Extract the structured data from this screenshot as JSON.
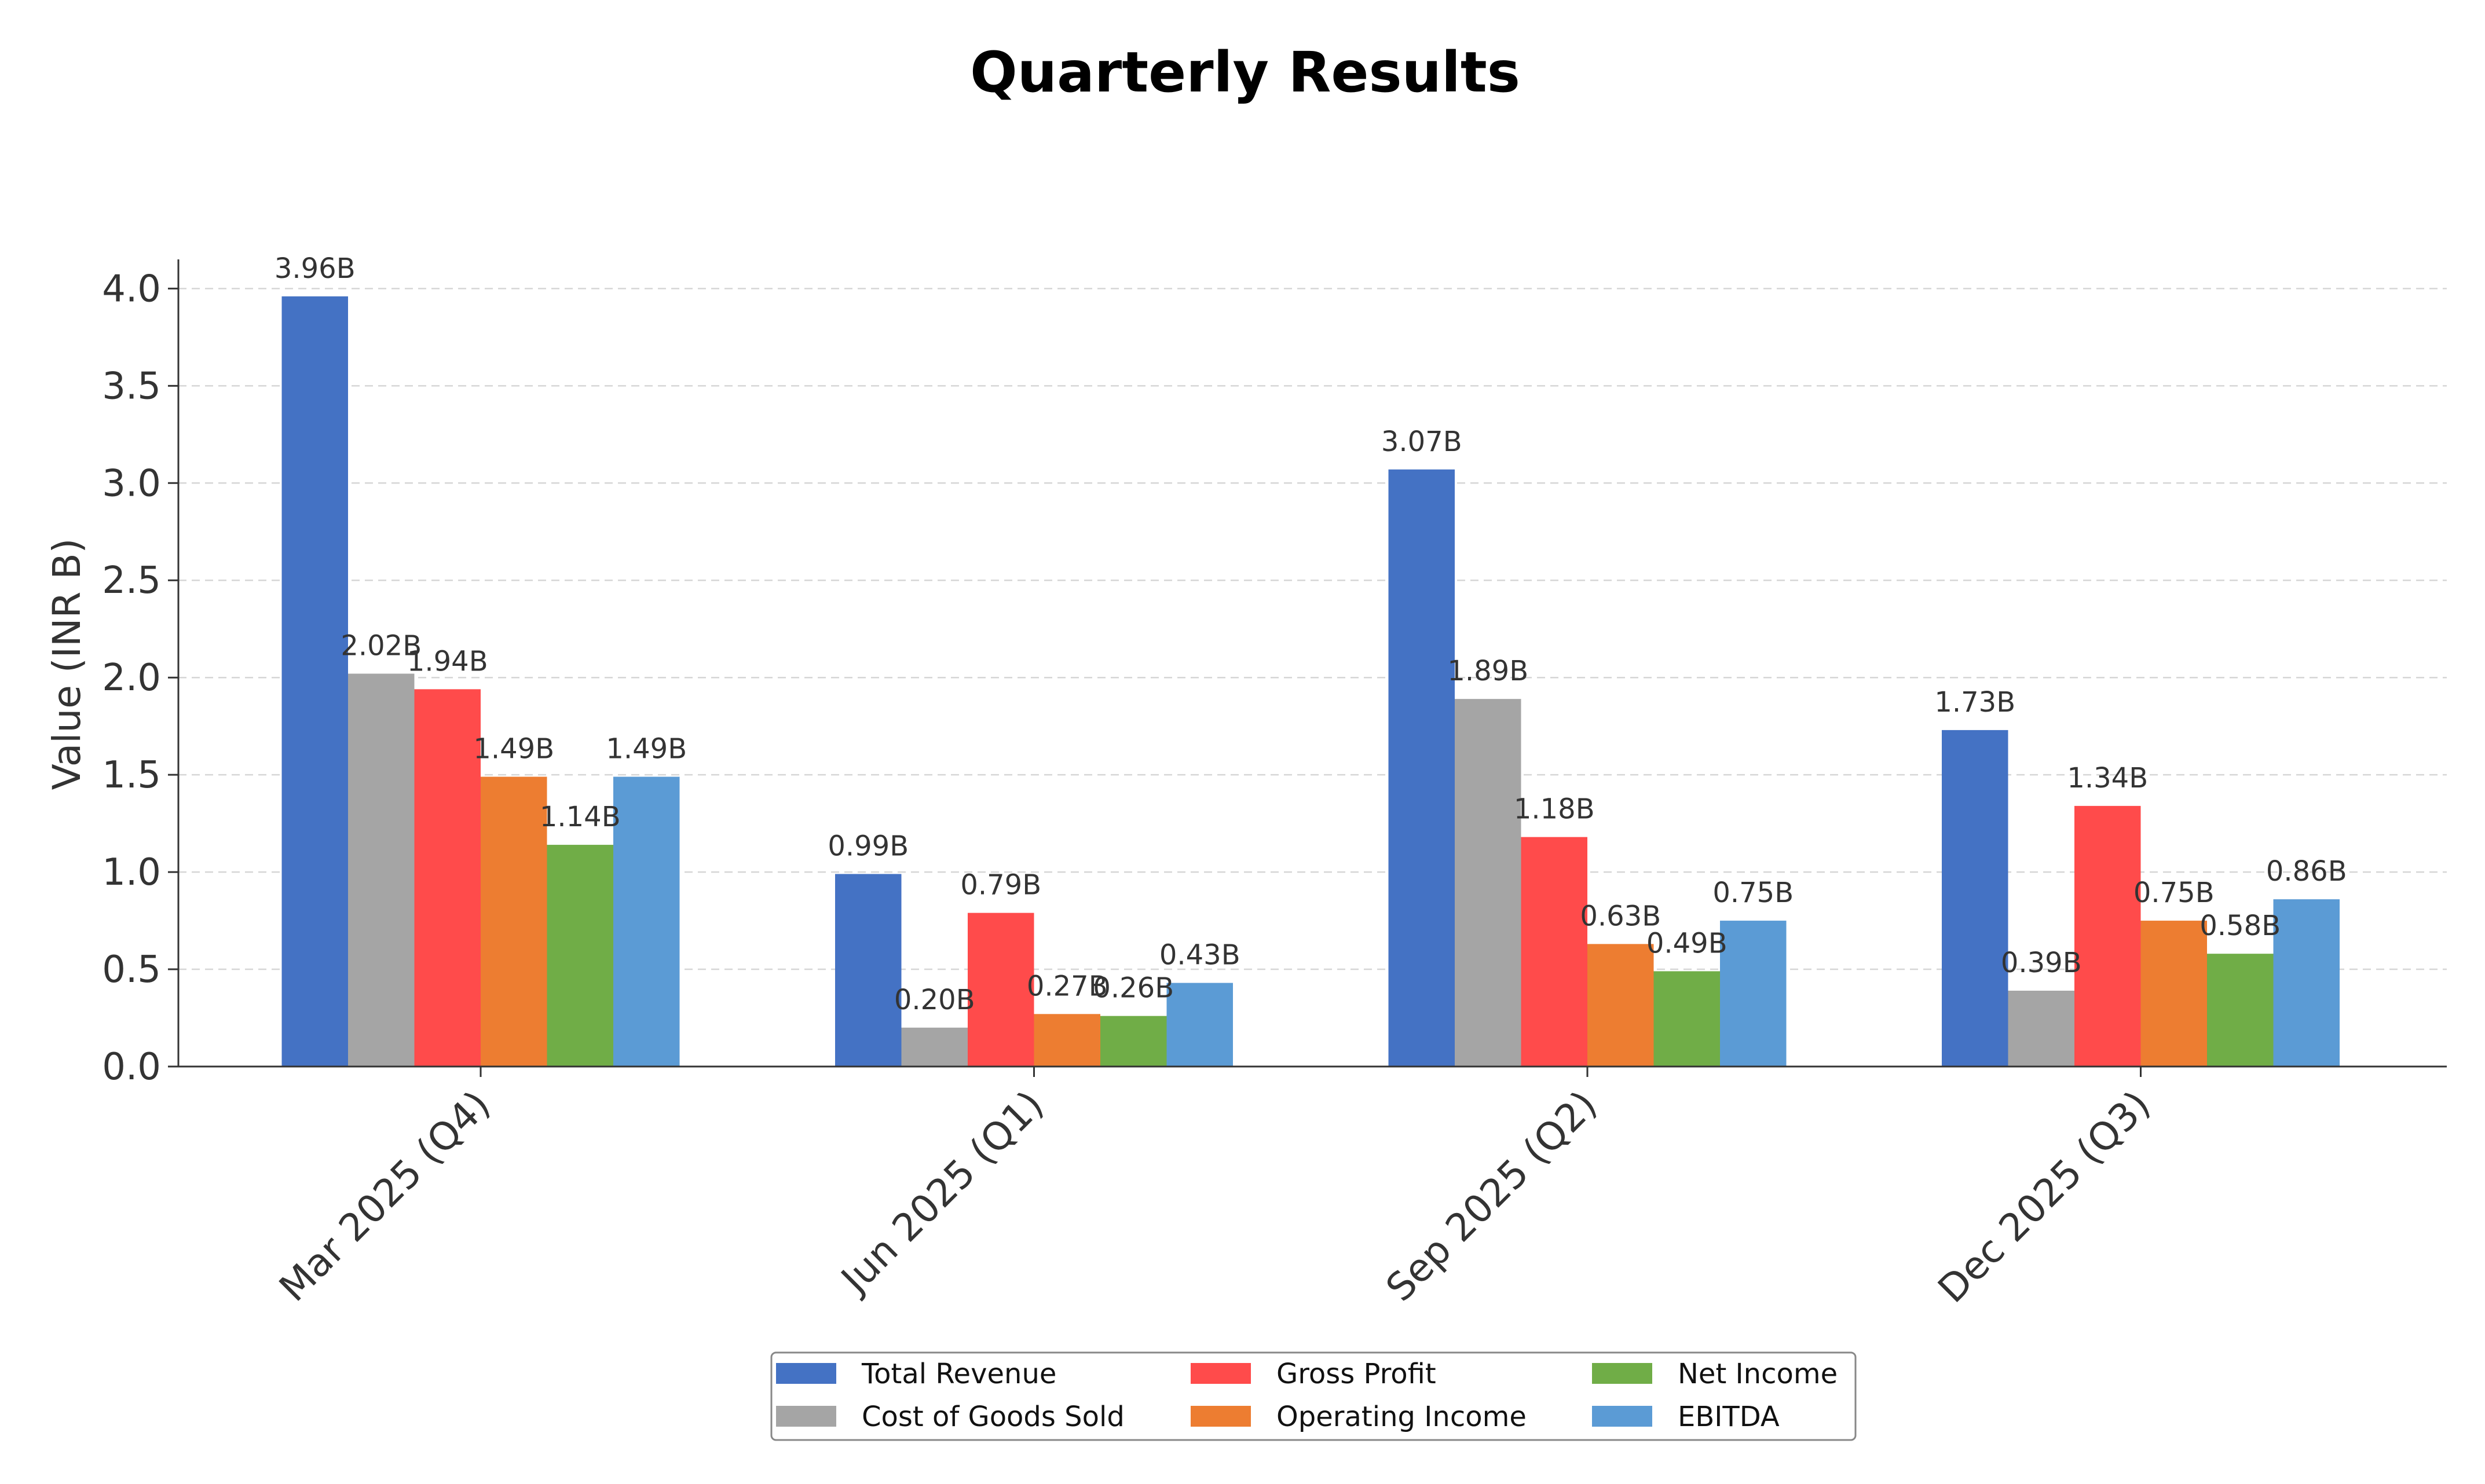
{
  "chart_data": {
    "type": "bar",
    "title": "Quarterly Results",
    "xlabel": "",
    "ylabel": "Value (INR B)",
    "ylim": [
      0,
      4.15
    ],
    "yticks": [
      "0.0",
      "0.5",
      "1.0",
      "1.5",
      "2.0",
      "2.5",
      "3.0",
      "3.5",
      "4.0"
    ],
    "categories": [
      "Mar 2025 (Q4)",
      "Jun 2025 (Q1)",
      "Sep 2025 (Q2)",
      "Dec 2025 (Q3)"
    ],
    "grid": "horizontal dashed",
    "legend_position": "bottom-center",
    "series": [
      {
        "name": "Total Revenue",
        "color": "#4472C4",
        "values": [
          3.96,
          0.99,
          3.07,
          1.73
        ],
        "labels": [
          "3.96B",
          "0.99B",
          "3.07B",
          "1.73B"
        ]
      },
      {
        "name": "Cost of Goods Sold",
        "color": "#A5A5A5",
        "values": [
          2.02,
          0.2,
          1.89,
          0.39
        ],
        "labels": [
          "2.02B",
          "0.20B",
          "1.89B",
          "0.39B"
        ]
      },
      {
        "name": "Gross Profit",
        "color": "#FF4B4B",
        "values": [
          1.94,
          0.79,
          1.18,
          1.34
        ],
        "labels": [
          "1.94B",
          "0.79B",
          "1.18B",
          "1.34B"
        ]
      },
      {
        "name": "Operating Income",
        "color": "#ED7D31",
        "values": [
          1.49,
          0.27,
          0.63,
          0.75
        ],
        "labels": [
          "1.49B",
          "0.27B",
          "0.63B",
          "0.75B"
        ]
      },
      {
        "name": "Net Income",
        "color": "#70AD47",
        "values": [
          1.14,
          0.26,
          0.49,
          0.58
        ],
        "labels": [
          "1.14B",
          "0.26B",
          "0.49B",
          "0.58B"
        ]
      },
      {
        "name": "EBITDA",
        "color": "#5B9BD5",
        "values": [
          1.49,
          0.43,
          0.75,
          0.86
        ],
        "labels": [
          "1.49B",
          "0.43B",
          "0.75B",
          "0.86B"
        ]
      }
    ]
  }
}
